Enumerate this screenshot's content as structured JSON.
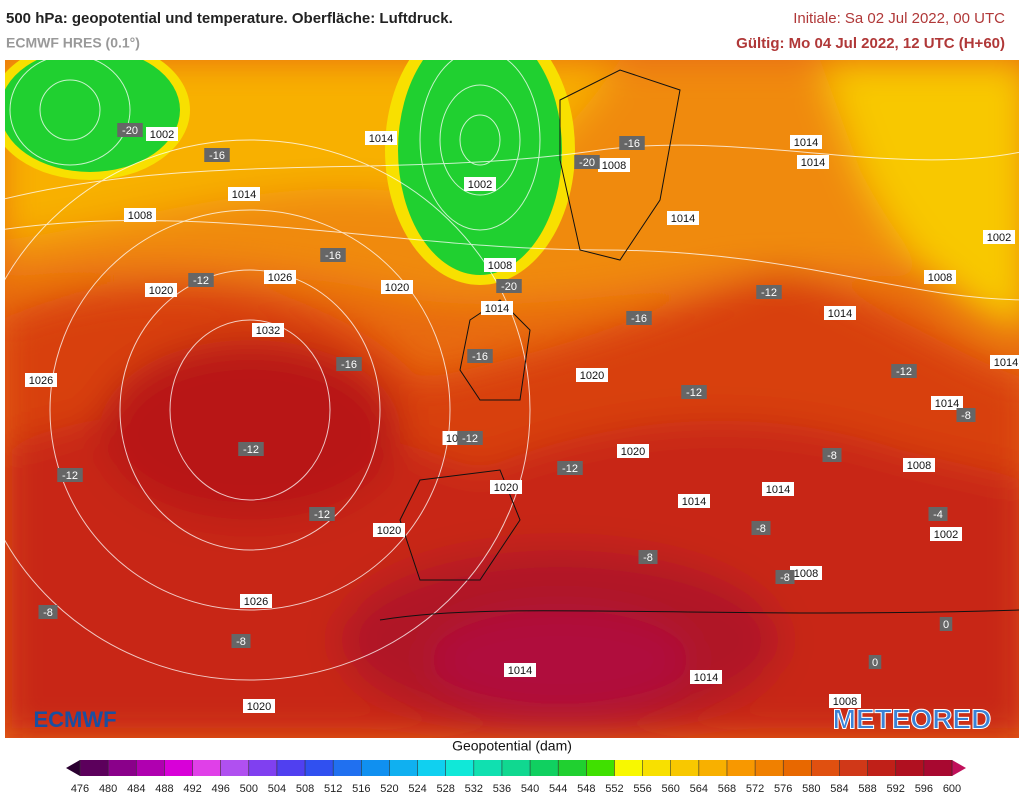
{
  "header": {
    "title": "500 hPa: geopotential und temperature. Oberfläche: Luftdruck.",
    "subtitle": "ECMWF HRES (0.1°)",
    "initial": "Initiale: Sa 02 Jul 2022, 00 UTC",
    "valid": "Gültig: Mo 04 Jul 2022, 12 UTC (H+60)"
  },
  "map": {
    "pressure_labels": [
      1002,
      1014,
      1002,
      1008,
      1014,
      1014,
      1008,
      1014,
      1014,
      1002,
      1008,
      1020,
      1026,
      1020,
      1008,
      1014,
      1014,
      1032,
      1026,
      1020,
      1014,
      1014,
      1020,
      1008,
      1020,
      1014,
      1014,
      1020,
      1002,
      1026,
      1008,
      1014,
      1014,
      1008,
      1020,
      10
    ],
    "temperature_labels": [
      -20,
      -16,
      -16,
      -20,
      -16,
      -12,
      -20,
      -12,
      -16,
      -16,
      -16,
      -12,
      -8,
      -12,
      -12,
      -12,
      -12,
      -12,
      -8,
      -12,
      -8,
      -4,
      -8,
      -8,
      -8,
      -8,
      0,
      0
    ]
  },
  "logos": {
    "left": "ECMWF",
    "right": "METEORED"
  },
  "colorbar": {
    "title": "Geopotential (dam)",
    "ticks": [
      476,
      480,
      484,
      488,
      492,
      496,
      500,
      504,
      508,
      512,
      516,
      520,
      524,
      528,
      532,
      536,
      540,
      544,
      548,
      552,
      556,
      560,
      564,
      568,
      572,
      576,
      580,
      584,
      588,
      592,
      596,
      600
    ],
    "colors": [
      "#2a0030",
      "#5c005c",
      "#8a008a",
      "#b000b0",
      "#d800d8",
      "#e040e8",
      "#b050f0",
      "#8040f0",
      "#5040f0",
      "#3050f0",
      "#2070f0",
      "#1090f0",
      "#10b0f0",
      "#10d0f0",
      "#10e8d8",
      "#10e0b0",
      "#10d890",
      "#10d060",
      "#20d030",
      "#40e000",
      "#f8f800",
      "#f8e000",
      "#f8c800",
      "#f8b000",
      "#f89800",
      "#f08000",
      "#e86800",
      "#e05010",
      "#d03818",
      "#c02018",
      "#b01020",
      "#a80830",
      "#c0105a"
    ]
  }
}
